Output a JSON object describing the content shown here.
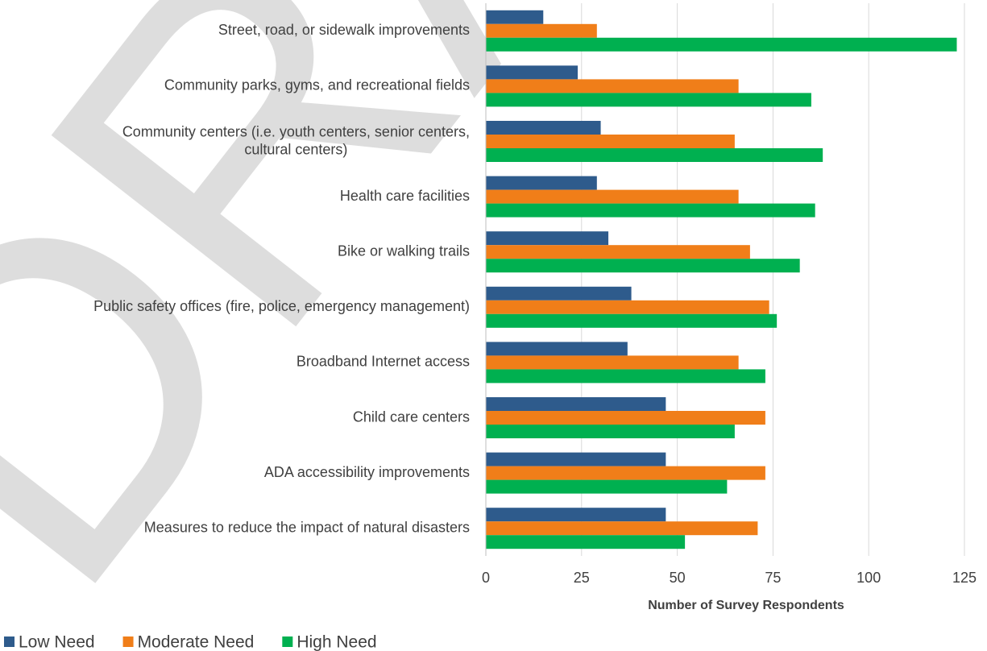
{
  "chart_data": {
    "type": "hbar",
    "watermark": "DRAFT",
    "categories": [
      "Street, road, or sidewalk improvements",
      "Community parks, gyms, and recreational fields",
      "Community centers (i.e. youth centers, senior centers, cultural centers)",
      "Health care facilities",
      "Bike or walking trails",
      "Public safety offices (fire, police, emergency management)",
      "Broadband Internet access",
      "Child care centers",
      "ADA accessibility improvements",
      "Measures to reduce the impact of natural disasters"
    ],
    "series": [
      {
        "name": "Low Need",
        "color": "#2e5b8c",
        "values": [
          15,
          24,
          30,
          29,
          32,
          38,
          37,
          47,
          47,
          47
        ]
      },
      {
        "name": "Moderate Need",
        "color": "#f07e19",
        "values": [
          29,
          66,
          65,
          66,
          69,
          74,
          66,
          73,
          73,
          71
        ]
      },
      {
        "name": "High Need",
        "color": "#00b050",
        "values": [
          123,
          85,
          88,
          86,
          82,
          76,
          73,
          65,
          63,
          52
        ]
      }
    ],
    "x_label": "Number of Survey Respondents",
    "xlim": [
      0,
      125
    ],
    "xticks": [
      0,
      25,
      50,
      75,
      100,
      125
    ],
    "grid": true,
    "legend": "bottom-left"
  }
}
